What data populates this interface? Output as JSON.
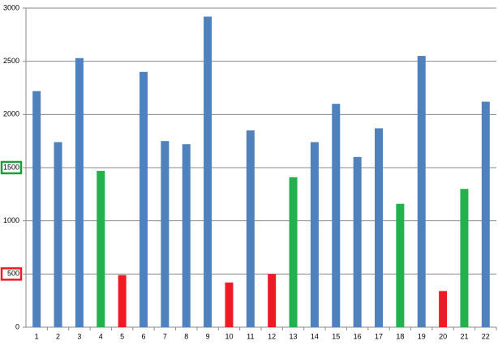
{
  "chart_data": {
    "type": "bar",
    "categories": [
      "1",
      "2",
      "3",
      "4",
      "5",
      "6",
      "7",
      "8",
      "9",
      "10",
      "11",
      "12",
      "13",
      "14",
      "15",
      "16",
      "17",
      "18",
      "19",
      "20",
      "21",
      "22"
    ],
    "values": [
      2220,
      1740,
      2530,
      1470,
      490,
      2400,
      1750,
      1720,
      2920,
      420,
      1850,
      500,
      1410,
      1740,
      2100,
      1600,
      1870,
      1160,
      2550,
      340,
      1300,
      2120
    ],
    "colors": [
      "#4f81bd",
      "#4f81bd",
      "#4f81bd",
      "#22b14c",
      "#ed1c24",
      "#4f81bd",
      "#4f81bd",
      "#4f81bd",
      "#4f81bd",
      "#ed1c24",
      "#4f81bd",
      "#ed1c24",
      "#22b14c",
      "#4f81bd",
      "#4f81bd",
      "#4f81bd",
      "#4f81bd",
      "#22b14c",
      "#4f81bd",
      "#ed1c24",
      "#22b14c",
      "#4f81bd"
    ],
    "ylim": [
      0,
      3000
    ],
    "yticks": [
      0,
      500,
      1000,
      1500,
      2000,
      2500,
      3000
    ],
    "ytick_box_colors": [
      null,
      "#ed1c24",
      null,
      "#1a9e3a",
      null,
      null,
      null
    ],
    "grid": true
  }
}
